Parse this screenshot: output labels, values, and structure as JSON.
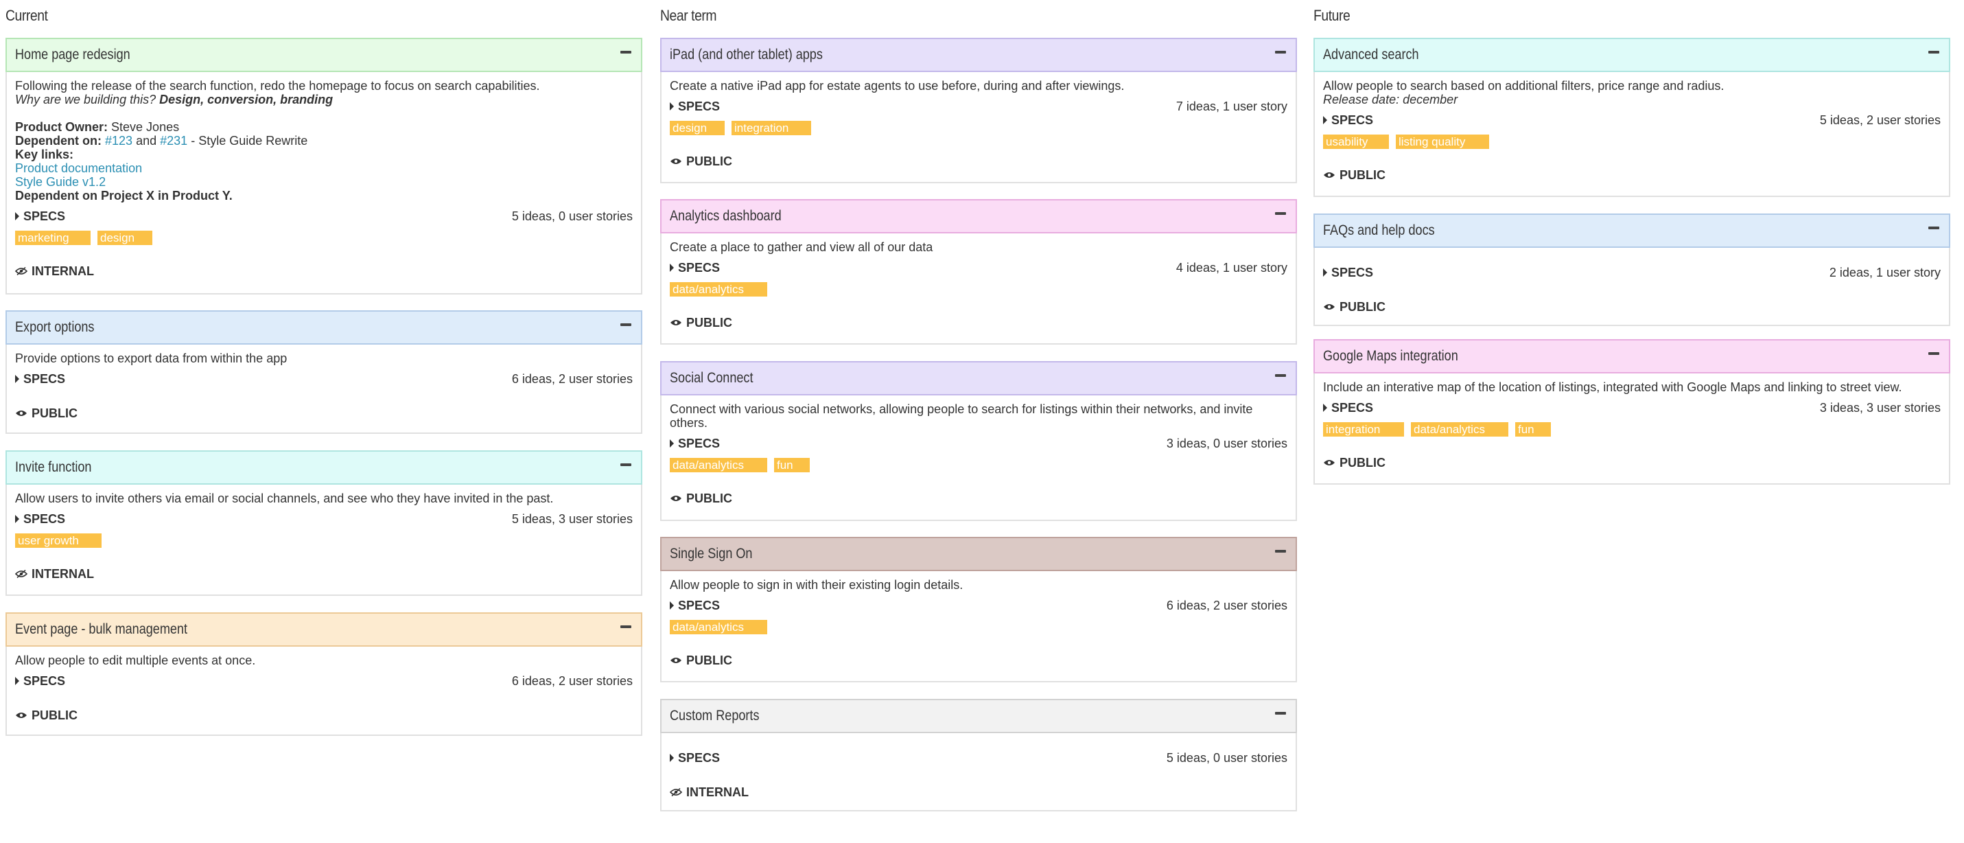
{
  "columns": [
    {
      "title": "Current",
      "cards": [
        {
          "title": "Home page redesign",
          "header_bg": "#e6fbe6",
          "header_border": "#b5e6b5",
          "description": "Following the release of the search function, redo the homepage to focus on search capabilities.",
          "why_prefix": "Why are we building this?",
          "why_values": "Design, conversion, branding",
          "owner_label": "Product Owner:",
          "owner": "Steve Jones",
          "dependent_label": "Dependent on:",
          "dep_link1": "#123",
          "dep_and": "and",
          "dep_link2": "#231",
          "dep_suffix": "- Style Guide Rewrite",
          "key_links_label": "Key links:",
          "link1": "Product documentation",
          "link2": "Style Guide v1.2",
          "dependent_project": "Dependent on Project X in Product Y.",
          "specs_label": "SPECS",
          "counts": "5 ideas, 0 user stories",
          "tags": [
            "marketing",
            "design"
          ],
          "visibility": "INTERNAL",
          "visibility_icon": "eye-slash-icon"
        },
        {
          "title": "Export options",
          "header_bg": "#deecfa",
          "header_border": "#b2cbe8",
          "description": "Provide options to export data from within the app",
          "specs_label": "SPECS",
          "counts": "6 ideas, 2 user stories",
          "tags": [],
          "visibility": "PUBLIC",
          "visibility_icon": "eye-icon"
        },
        {
          "title": "Invite function",
          "header_bg": "#defbf9",
          "header_border": "#aee5e0",
          "description": "Allow users to invite others via email or social channels, and see who they have invited in the past.",
          "specs_label": "SPECS",
          "counts": "5 ideas, 3 user stories",
          "tags": [
            "user growth"
          ],
          "visibility": "INTERNAL",
          "visibility_icon": "eye-slash-icon"
        },
        {
          "title": "Event page - bulk management",
          "header_bg": "#fdebd0",
          "header_border": "#ecc996",
          "description": "Allow people to edit multiple events at once.",
          "specs_label": "SPECS",
          "counts": "6 ideas, 2 user stories",
          "tags": [],
          "visibility": "PUBLIC",
          "visibility_icon": "eye-icon"
        }
      ]
    },
    {
      "title": "Near term",
      "cards": [
        {
          "title": "iPad (and other tablet) apps",
          "header_bg": "#e6e0fa",
          "header_border": "#c3b8ea",
          "description": "Create a native iPad app for estate agents to use before, during and after viewings.",
          "specs_label": "SPECS",
          "counts": "7 ideas, 1 user story",
          "tags": [
            "design",
            "integration"
          ],
          "visibility": "PUBLIC",
          "visibility_icon": "eye-icon"
        },
        {
          "title": "Analytics dashboard",
          "header_bg": "#fbdcf6",
          "header_border": "#e8acdf",
          "description": "Create a place to gather and view all of our data",
          "specs_label": "SPECS",
          "counts": "4 ideas, 1 user story",
          "tags": [
            "data/analytics"
          ],
          "visibility": "PUBLIC",
          "visibility_icon": "eye-icon"
        },
        {
          "title": "Social Connect",
          "header_bg": "#e6e0fa",
          "header_border": "#c3b8ea",
          "description": "Connect with various social networks, allowing people to search for listings within their networks, and invite others.",
          "specs_label": "SPECS",
          "counts": "3 ideas, 0 user stories",
          "tags": [
            "data/analytics",
            "fun"
          ],
          "visibility": "PUBLIC",
          "visibility_icon": "eye-icon"
        },
        {
          "title": "Single Sign On",
          "header_bg": "#dbc9c5",
          "header_border": "#bfa39d",
          "description": "Allow people to sign in with their existing login details.",
          "specs_label": "SPECS",
          "counts": "6 ideas, 2 user stories",
          "tags": [
            "data/analytics"
          ],
          "visibility": "PUBLIC",
          "visibility_icon": "eye-icon"
        },
        {
          "title": "Custom Reports",
          "header_bg": "#f2f2f2",
          "header_border": "#d2d2d2",
          "description": "",
          "specs_label": "SPECS",
          "counts": "5 ideas, 0 user stories",
          "tags": [],
          "visibility": "INTERNAL",
          "visibility_icon": "eye-slash-icon"
        }
      ]
    },
    {
      "title": "Future",
      "cards": [
        {
          "title": "Advanced search",
          "header_bg": "#defbf9",
          "header_border": "#aee5e0",
          "description": "Allow people to search based on additional filters, price range and radius.",
          "release_note": "Release date: december",
          "specs_label": "SPECS",
          "counts": "5 ideas, 2 user stories",
          "tags": [
            "usability",
            "listing quality"
          ],
          "visibility": "PUBLIC",
          "visibility_icon": "eye-icon"
        },
        {
          "title": "FAQs and help docs",
          "header_bg": "#deecfa",
          "header_border": "#b2cbe8",
          "description": "",
          "specs_label": "SPECS",
          "counts": "2 ideas, 1 user story",
          "tags": [],
          "visibility": "PUBLIC",
          "visibility_icon": "eye-icon"
        },
        {
          "title": "Google Maps integration",
          "header_bg": "#fbdcf6",
          "header_border": "#e8acdf",
          "description": "Include an interative map of the location of listings, integrated with Google Maps and linking to street view.",
          "specs_label": "SPECS",
          "counts": "3 ideas, 3 user stories",
          "tags": [
            "integration",
            "data/analytics",
            "fun"
          ],
          "visibility": "PUBLIC",
          "visibility_icon": "eye-icon"
        }
      ]
    }
  ]
}
